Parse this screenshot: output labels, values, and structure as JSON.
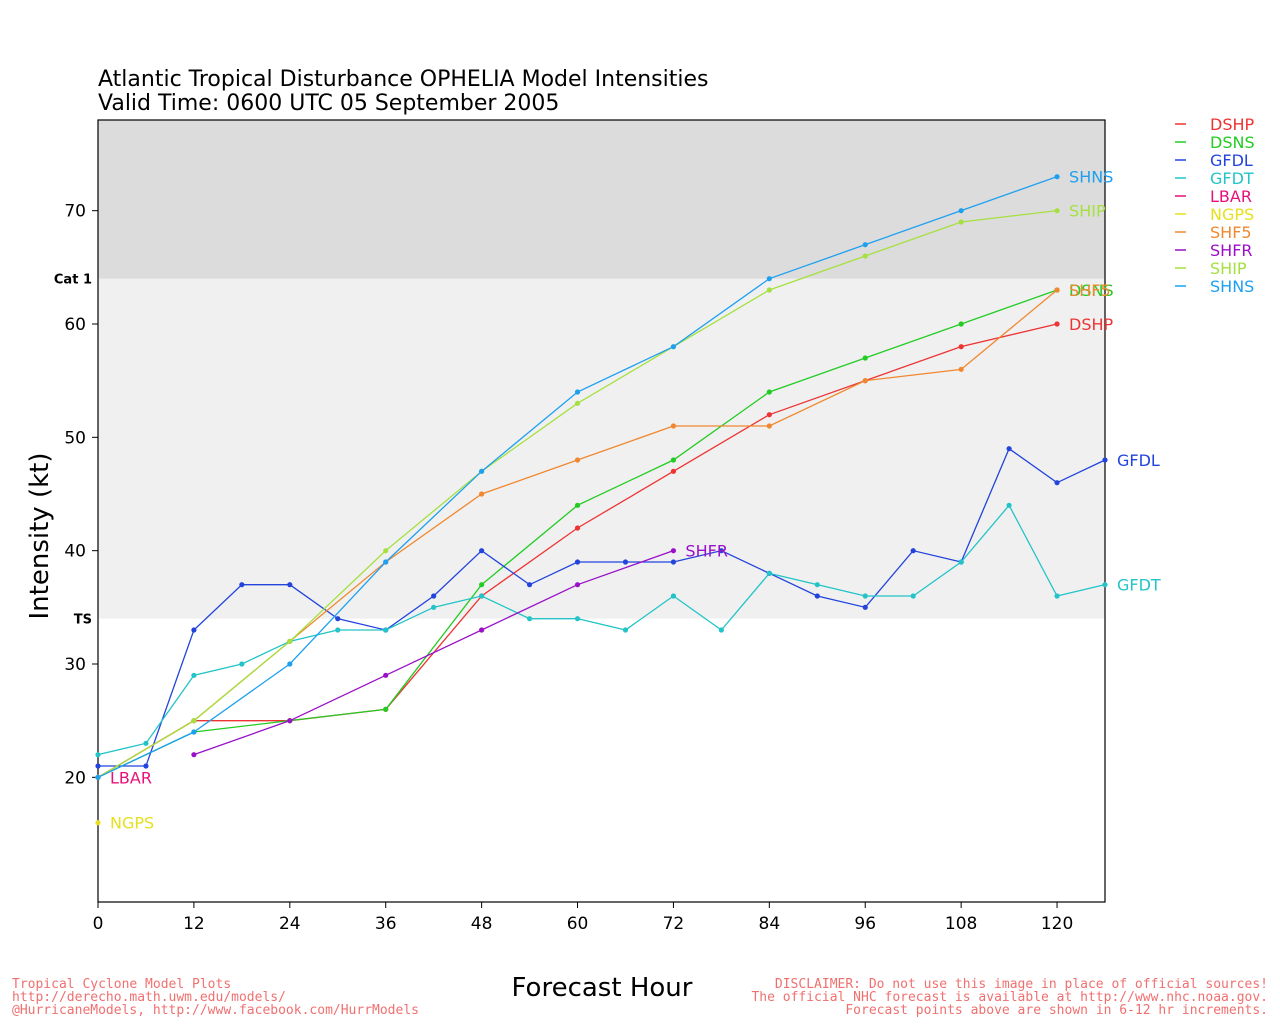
{
  "chart_data": {
    "type": "line",
    "title": "Atlantic Tropical Disturbance OPHELIA Model Intensities",
    "subtitle": "Valid Time: 0600 UTC 05 September 2005",
    "xlabel": "Forecast Hour",
    "ylabel": "Intensity (kt)",
    "xlim": [
      0,
      126
    ],
    "ylim": [
      9,
      78
    ],
    "x_ticks": [
      0,
      12,
      24,
      36,
      48,
      60,
      72,
      84,
      96,
      108,
      120
    ],
    "y_ticks": [
      20,
      30,
      40,
      50,
      60,
      70
    ],
    "bands": [
      {
        "name": "TS",
        "label": "TS",
        "from": 34,
        "to": 64,
        "color": "#f0f0f0"
      },
      {
        "name": "Cat 1",
        "label": "Cat 1",
        "from": 64,
        "to": 78,
        "color": "#dcdcdc"
      }
    ],
    "legend_position": "right",
    "series": [
      {
        "name": "DSHP",
        "color": "#ee3333",
        "x": [
          0,
          12,
          24,
          36,
          48,
          60,
          72,
          84,
          96,
          108,
          120
        ],
        "values": [
          20,
          25,
          25,
          26,
          36,
          42,
          47,
          52,
          55,
          58,
          60
        ],
        "end_label": "DSHP"
      },
      {
        "name": "DSNS",
        "color": "#22cc22",
        "x": [
          0,
          12,
          24,
          36,
          48,
          60,
          72,
          84,
          96,
          108,
          120
        ],
        "values": [
          20,
          24,
          25,
          26,
          37,
          44,
          48,
          54,
          57,
          60,
          63
        ],
        "end_label": "DSNS"
      },
      {
        "name": "GFDL",
        "color": "#2244dd",
        "x": [
          0,
          6,
          12,
          18,
          24,
          30,
          36,
          42,
          48,
          54,
          60,
          66,
          72,
          78,
          84,
          90,
          96,
          102,
          108,
          114,
          120,
          126
        ],
        "values": [
          21,
          21,
          33,
          37,
          37,
          34,
          33,
          36,
          40,
          37,
          39,
          39,
          39,
          40,
          38,
          36,
          35,
          40,
          39,
          49,
          46,
          48
        ],
        "end_label": "GFDL"
      },
      {
        "name": "GFDT",
        "color": "#22c4c8",
        "x": [
          0,
          6,
          12,
          18,
          24,
          30,
          36,
          42,
          48,
          54,
          60,
          66,
          72,
          78,
          84,
          90,
          96,
          102,
          108,
          114,
          120,
          126
        ],
        "values": [
          22,
          23,
          29,
          30,
          32,
          33,
          33,
          35,
          36,
          34,
          34,
          33,
          36,
          33,
          38,
          37,
          36,
          36,
          39,
          44,
          36,
          37
        ],
        "end_label": "GFDT"
      },
      {
        "name": "LBAR",
        "color": "#e8107a",
        "x": [
          0
        ],
        "values": [
          20
        ],
        "end_label": "LBAR"
      },
      {
        "name": "NGPS",
        "color": "#e6e020",
        "x": [
          0
        ],
        "values": [
          16
        ],
        "end_label": "NGPS"
      },
      {
        "name": "SHF5",
        "color": "#f08830",
        "x": [
          0,
          12,
          24,
          36,
          48,
          60,
          72,
          84,
          96,
          108,
          120
        ],
        "values": [
          20,
          25,
          32,
          39,
          45,
          48,
          51,
          51,
          55,
          56,
          63
        ],
        "end_label": "SHF5"
      },
      {
        "name": "SHFR",
        "color": "#9a10c8",
        "x": [
          12,
          24,
          36,
          48,
          60,
          72
        ],
        "values": [
          22,
          25,
          29,
          33,
          37,
          40
        ],
        "end_label": "SHFR"
      },
      {
        "name": "SHIP",
        "color": "#a6e040",
        "x": [
          0,
          12,
          24,
          36,
          48,
          60,
          72,
          84,
          96,
          108,
          120
        ],
        "values": [
          20,
          25,
          32,
          40,
          47,
          53,
          58,
          63,
          66,
          69,
          70
        ],
        "end_label": "SHIP"
      },
      {
        "name": "SHNS",
        "color": "#1ea0f0",
        "x": [
          0,
          12,
          24,
          36,
          48,
          60,
          72,
          84,
          96,
          108,
          120
        ],
        "values": [
          20,
          24,
          30,
          39,
          47,
          54,
          58,
          64,
          67,
          70,
          73
        ],
        "end_label": "SHNS"
      }
    ]
  },
  "footer": {
    "left_line1": "Tropical Cyclone Model Plots",
    "left_line2": "http://derecho.math.uwm.edu/models/",
    "left_line3": "@HurricaneModels, http://www.facebook.com/HurrModels",
    "right_line1": "DISCLAIMER: Do not use this image in place of official sources!",
    "right_line2": "The official NHC forecast is available at http://www.nhc.noaa.gov.",
    "right_line3": "Forecast points above are shown in 6-12 hr increments."
  }
}
